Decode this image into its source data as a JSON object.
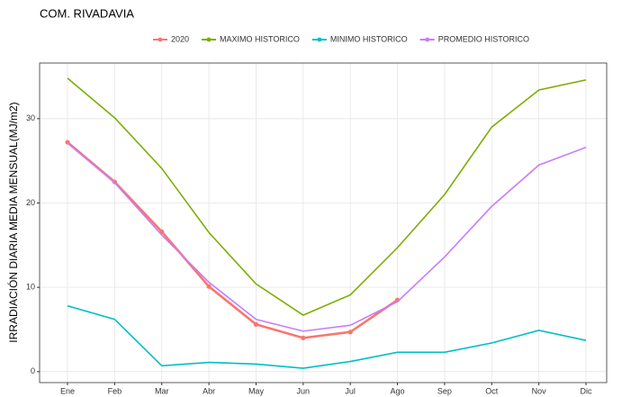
{
  "chart_data": {
    "type": "line",
    "title": "COM. RIVADAVIA",
    "y_label": "IRRADIACIÓN DIARIA MEDIA MENSUAL(MJ/m2)",
    "categories": [
      "Ene",
      "Feb",
      "Mar",
      "Abr",
      "May",
      "Jun",
      "Jul",
      "Ago",
      "Sep",
      "Oct",
      "Nov",
      "Dic"
    ],
    "series": [
      {
        "name": "2020",
        "color": "#F8766D",
        "markers": true,
        "values": [
          27.2,
          22.5,
          16.6,
          10.1,
          5.6,
          4.0,
          4.7,
          8.5,
          null,
          null,
          null,
          null
        ]
      },
      {
        "name": "MAXIMO HISTORICO",
        "color": "#7CAE00",
        "values": [
          34.8,
          30.1,
          24.1,
          16.5,
          10.4,
          6.7,
          9.1,
          14.7,
          21.0,
          29.0,
          33.4,
          34.6
        ]
      },
      {
        "name": "MINIMO HISTORICO",
        "color": "#00BFC4",
        "values": [
          7.8,
          6.2,
          0.7,
          1.1,
          0.9,
          0.4,
          1.2,
          2.3,
          2.3,
          3.4,
          4.9,
          3.7
        ]
      },
      {
        "name": "PROMEDIO HISTORICO",
        "color": "#C77CFF",
        "values": [
          27.1,
          22.4,
          16.2,
          10.6,
          6.2,
          4.8,
          5.5,
          8.3,
          13.6,
          19.6,
          24.5,
          26.6
        ]
      }
    ],
    "ylim": [
      -1.3,
      36.6
    ],
    "yticks": [
      0,
      10,
      20,
      30
    ],
    "grid": true,
    "legend": "top"
  }
}
